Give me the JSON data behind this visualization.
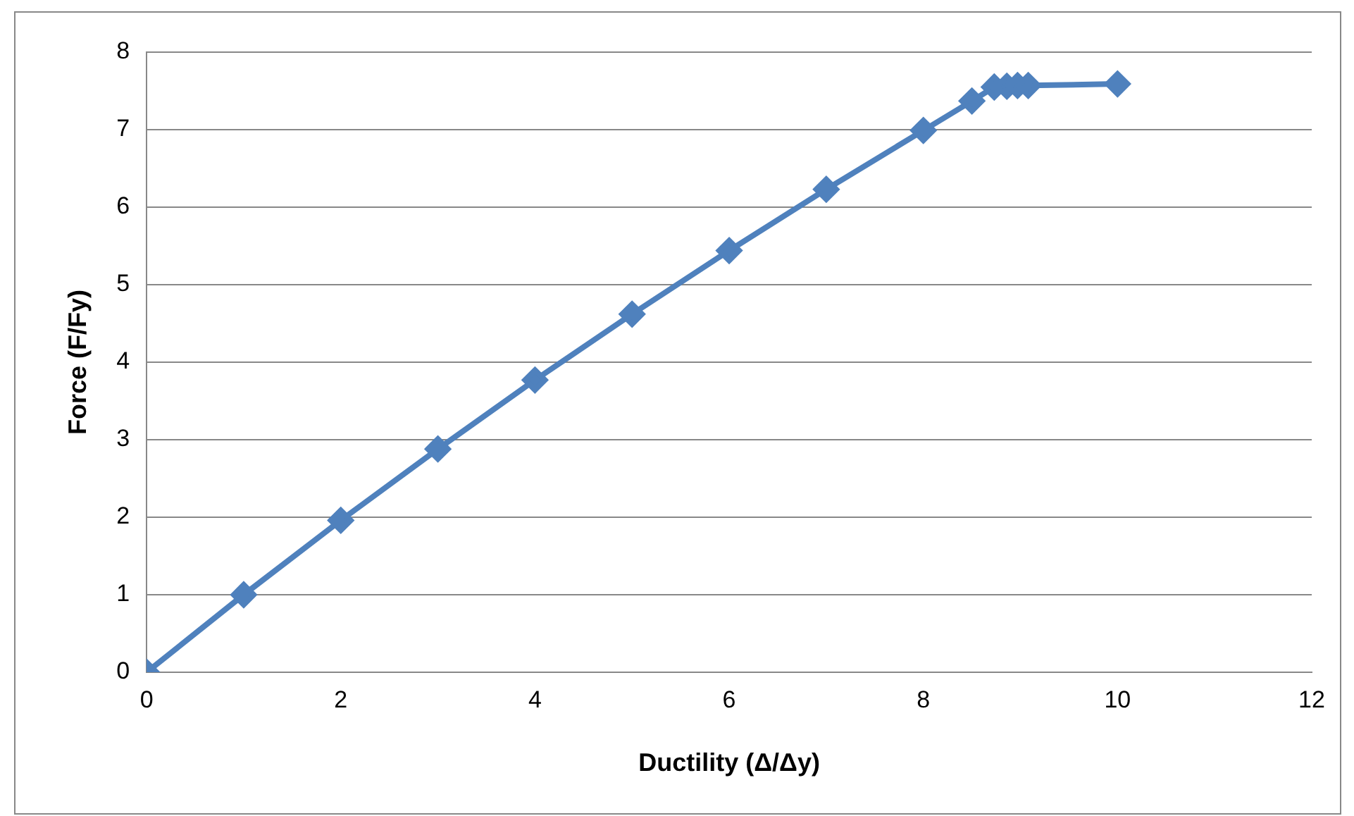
{
  "chart_data": {
    "type": "line",
    "xlabel": "Ductility (Δ/Δy)",
    "ylabel": "Force (F/Fy)",
    "x": [
      0,
      1,
      2,
      3,
      4,
      5,
      6,
      7,
      8,
      8.5,
      8.73,
      8.86,
      8.97,
      9.08,
      10
    ],
    "series": [
      {
        "color": "#4f81bd",
        "values": [
          0,
          1,
          1.96,
          2.88,
          3.77,
          4.62,
          5.44,
          6.23,
          6.99,
          7.37,
          7.55,
          7.56,
          7.57,
          7.57,
          7.59
        ]
      }
    ],
    "xlim": [
      0,
      12
    ],
    "xticks": [
      0,
      2,
      4,
      6,
      8,
      10,
      12
    ],
    "ylim": [
      0,
      8
    ],
    "yticks": [
      0,
      1,
      2,
      3,
      4,
      5,
      6,
      7,
      8
    ],
    "grid": "y",
    "marker": "diamond",
    "legend": false
  }
}
